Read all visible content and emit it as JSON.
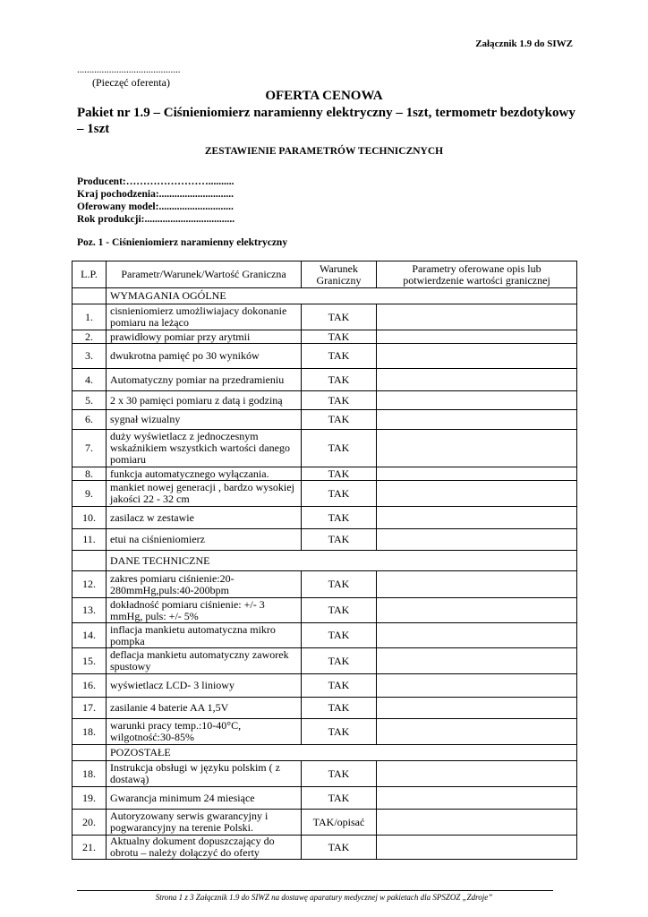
{
  "header": {
    "attachment": "Załącznik 1.9 do SIWZ",
    "stamp_dots": "..........................................",
    "stamp_label": "(Pieczęć oferenta)",
    "title": "OFERTA CENOWA",
    "subtitle": "Pakiet nr 1.9 – Ciśnieniomierz naramienny elektryczny – 1szt, termometr bezdotykowy – 1szt",
    "section_title": "ZESTAWIENIE PARAMETRÓW TECHNICZNYCH"
  },
  "fields": [
    "Producent:……………………..........",
    "Kraj pochodzenia:.............................",
    "Oferowany model:.............................",
    "Rok produkcji:..................................."
  ],
  "position_title": "Poz. 1 - Ciśnieniomierz naramienny elektryczny",
  "table": {
    "columns": [
      "L.P.",
      "Parametr/Warunek/Wartość Graniczna",
      "Warunek Graniczny",
      "Parametry oferowane opis lub potwierdzenie wartości granicznej"
    ],
    "rows": [
      {
        "section": "WYMAGANIA OGÓLNE"
      },
      {
        "lp": "1.",
        "parameter": "cisnieniomierz umożliwiajacy dokonanie pomiaru na leżąco",
        "requirement": "TAK"
      },
      {
        "lp": "2.",
        "parameter": "prawidłowy pomiar przy arytmii",
        "requirement": "TAK"
      },
      {
        "lp": "3.",
        "parameter": "dwukrotna pamięć po 30 wyników",
        "requirement": "TAK"
      },
      {
        "lp": "4.",
        "parameter": "Automatyczny pomiar na przedramieniu",
        "requirement": "TAK"
      },
      {
        "lp": "5.",
        "parameter": "2 x 30 pamięci pomiaru z datą i godziną",
        "requirement": "TAK"
      },
      {
        "lp": "6.",
        "parameter": "sygnał wizualny",
        "requirement": "TAK"
      },
      {
        "lp": "7.",
        "parameter": "duży wyświetlacz z jednoczesnym wskaźnikiem wszystkich wartości danego pomiaru",
        "requirement": "TAK"
      },
      {
        "lp": "8.",
        "parameter": "funkcja automatycznego wyłączania.",
        "requirement": "TAK"
      },
      {
        "lp": "9.",
        "parameter": "mankiet nowej generacji , bardzo wysokiej jakości 22 - 32 cm",
        "requirement": "TAK"
      },
      {
        "lp": "10.",
        "parameter": "zasilacz w zestawie",
        "requirement": "TAK"
      },
      {
        "lp": "11.",
        "parameter": "etui na ciśnieniomierz",
        "requirement": "TAK"
      },
      {
        "section": "DANE TECHNICZNE"
      },
      {
        "lp": "12.",
        "parameter": "zakres pomiaru ciśnienie:20-280mmHg,puls:40-200bpm",
        "requirement": "TAK"
      },
      {
        "lp": "13.",
        "parameter": "dokładność pomiaru ciśnienie: +/- 3 mmHg, puls: +/- 5%",
        "requirement": "TAK"
      },
      {
        "lp": "14.",
        "parameter": "inflacja mankietu automatyczna mikro pompka",
        "requirement": "TAK"
      },
      {
        "lp": "15.",
        "parameter": "deflacja mankietu automatyczny zaworek spustowy",
        "requirement": "TAK"
      },
      {
        "lp": "16.",
        "parameter": "wyświetlacz LCD- 3 liniowy",
        "requirement": "TAK"
      },
      {
        "lp": "17.",
        "parameter": "zasilanie 4 baterie AA 1,5V",
        "requirement": "TAK"
      },
      {
        "lp": "18.",
        "parameter": "warunki pracy temp.:10-40°C, wilgotność:30-85%",
        "requirement": "TAK"
      },
      {
        "section": "POZOSTAŁE"
      },
      {
        "lp": "18.",
        "parameter": "Instrukcja obsługi w języku polskim ( z dostawą)",
        "requirement": "TAK"
      },
      {
        "lp": "19.",
        "parameter": "Gwarancja minimum 24 miesiące",
        "requirement": "TAK"
      },
      {
        "lp": "20.",
        "parameter": "Autoryzowany serwis gwarancyjny i pogwarancyjny na terenie Polski.",
        "requirement": "TAK/opisać"
      },
      {
        "lp": "21.",
        "parameter": "Aktualny dokument dopuszczający do obrotu – należy dołączyć do oferty",
        "requirement": "TAK"
      }
    ]
  },
  "footer": "Strona 1 z 3 Załącznik 1.9 do SIWZ na dostawę aparatury medycznej w pakietach dla SPSZOZ „Zdroje”"
}
